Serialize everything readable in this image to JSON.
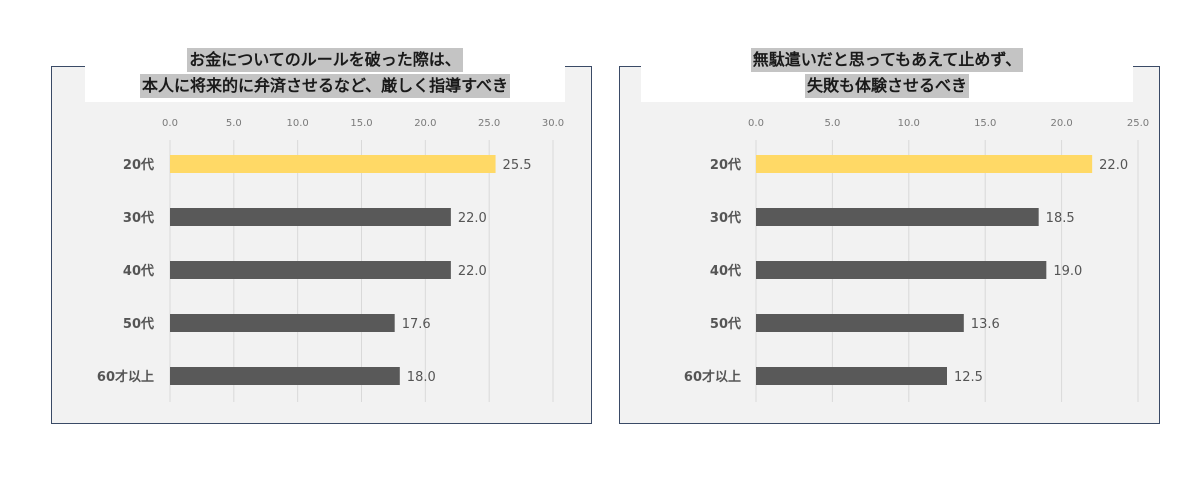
{
  "chart_data": [
    {
      "type": "bar",
      "orientation": "horizontal",
      "title_lines": [
        "お金についてのルールを破った際は、",
        "本人に将来的に弁済させるなど、厳しく指導すべき"
      ],
      "categories": [
        "20代",
        "30代",
        "40代",
        "50代",
        "60才以上"
      ],
      "values": [
        25.5,
        22.0,
        22.0,
        17.6,
        18.0
      ],
      "value_labels": [
        "25.5",
        "22.0",
        "22.0",
        "17.6",
        "18.0"
      ],
      "xlim": [
        0,
        30
      ],
      "ticks": [
        "0.0",
        "5.0",
        "10.0",
        "15.0",
        "20.0",
        "25.0",
        "30.0"
      ],
      "tick_values": [
        0,
        5,
        10,
        15,
        20,
        25,
        30
      ],
      "highlight_index": 0,
      "colors": {
        "highlight": "#ffd966",
        "bar": "#595959"
      },
      "grid": true
    },
    {
      "type": "bar",
      "orientation": "horizontal",
      "title_lines": [
        "無駄遣いだと思ってもあえて止めず、",
        "失敗も体験させるべき"
      ],
      "categories": [
        "20代",
        "30代",
        "40代",
        "50代",
        "60才以上"
      ],
      "values": [
        22.0,
        18.5,
        19.0,
        13.6,
        12.5
      ],
      "value_labels": [
        "22.0",
        "18.5",
        "19.0",
        "13.6",
        "12.5"
      ],
      "xlim": [
        0,
        25
      ],
      "ticks": [
        "0.0",
        "5.0",
        "10.0",
        "15.0",
        "20.0",
        "25.0"
      ],
      "tick_values": [
        0,
        5,
        10,
        15,
        20,
        25
      ],
      "highlight_index": 0,
      "colors": {
        "highlight": "#ffd966",
        "bar": "#595959"
      },
      "grid": true
    }
  ]
}
